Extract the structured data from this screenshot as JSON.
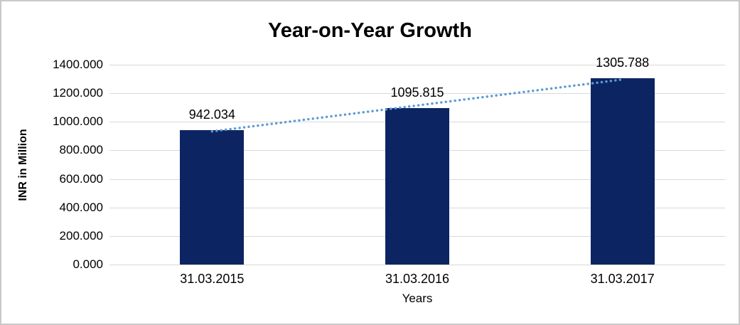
{
  "chart_data": {
    "type": "bar",
    "title": "Year-on-Year Growth",
    "categories": [
      "31.03.2015",
      "31.03.2016",
      "31.03.2017"
    ],
    "values": [
      942.034,
      1095.815,
      1305.788
    ],
    "data_labels": [
      "942.034",
      "1095.815",
      "1305.788"
    ],
    "xlabel": "Years",
    "ylabel": "INR in Million",
    "ylim": [
      0,
      1400
    ],
    "ytick_step": 200,
    "ytick_decimals": 3,
    "grid": true,
    "legend": false,
    "bar_color": "#0D2463",
    "gridline_color": "#D9D9D9",
    "trendline": {
      "type": "linear",
      "style": "dotted",
      "color": "#5B9BD5"
    }
  }
}
